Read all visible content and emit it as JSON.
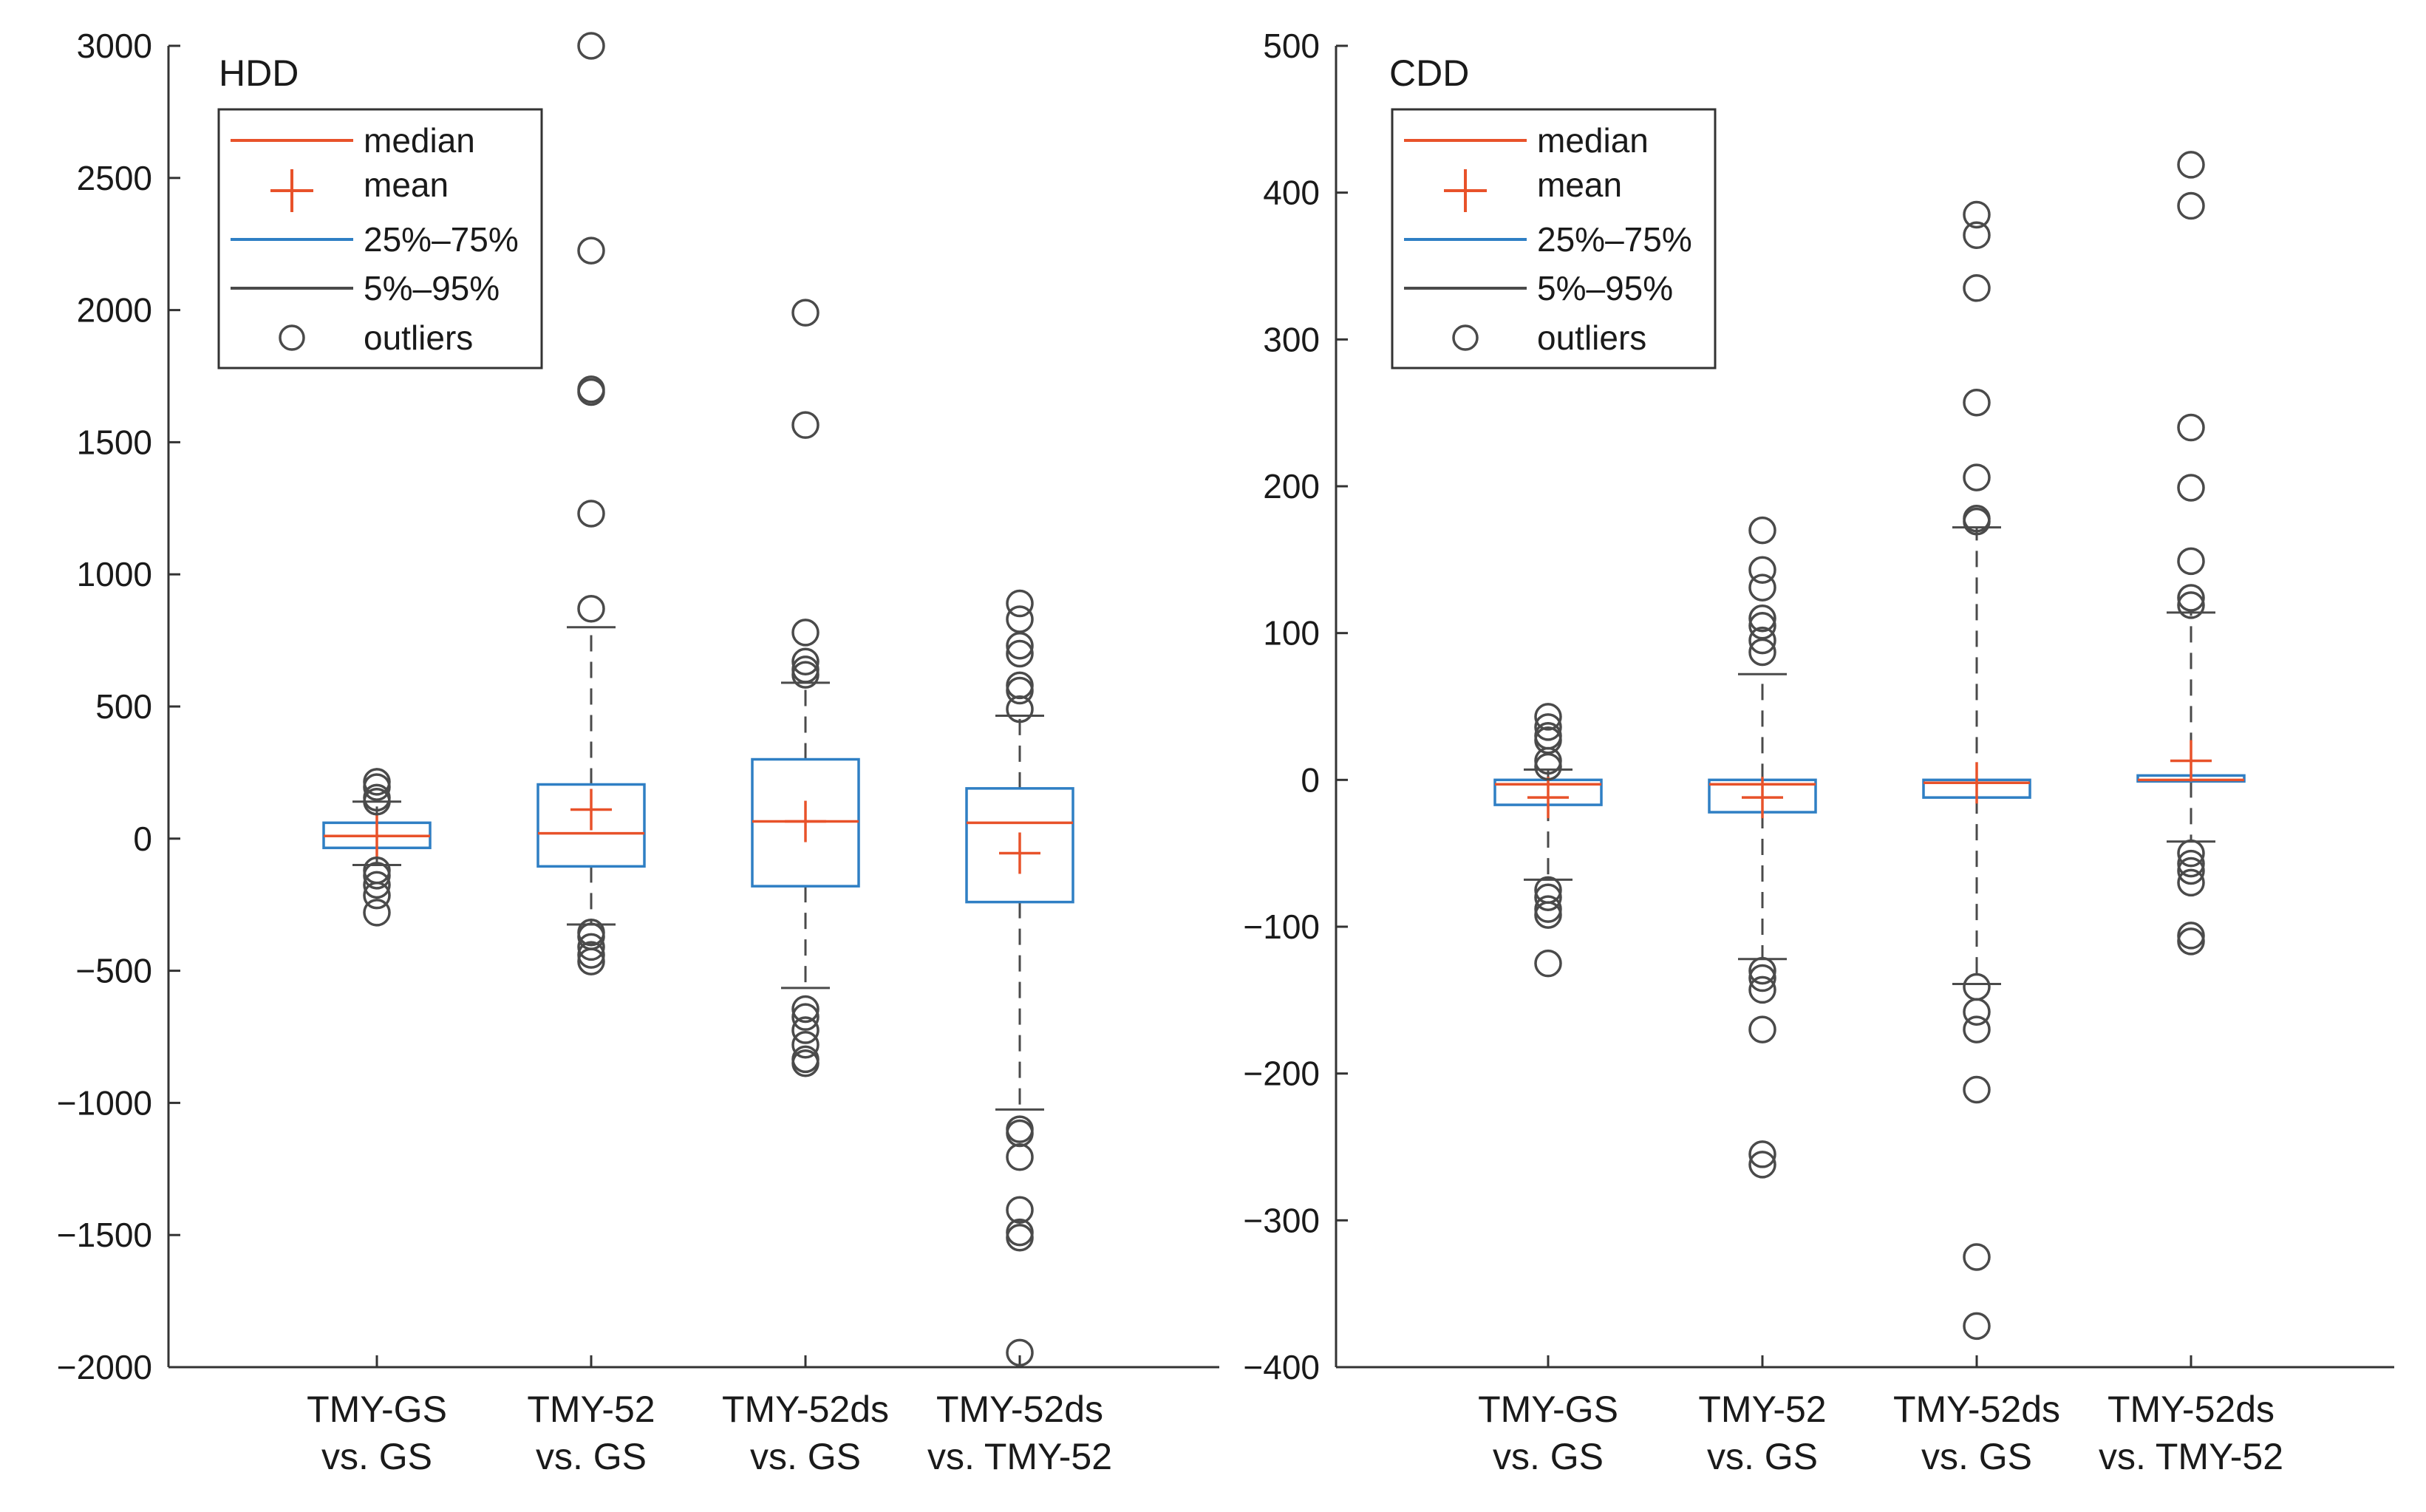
{
  "colors": {
    "median": "#e8522a",
    "mean": "#e8522a",
    "box": "#2f7fc4",
    "whisker": "#4a4a4a",
    "outlier": "#4a4a4a",
    "axis": "#333333"
  },
  "legend": {
    "median": "median",
    "mean": "mean",
    "box": "25%–75%",
    "whisker": "5%–95%",
    "outliers": "outliers"
  },
  "chart_data": [
    {
      "type": "box",
      "title": "HDD",
      "ylim": [
        -2000,
        3000
      ],
      "yticks": [
        3000,
        2500,
        2000,
        1500,
        1000,
        500,
        0,
        -500,
        -1000,
        -1500,
        -2000
      ],
      "ytick_labels": [
        "3000",
        "2500",
        "2000",
        "1500",
        "1000",
        "500",
        "0",
        "−500",
        "−1000",
        "−1500",
        "−2000"
      ],
      "legend_position": "top-left",
      "categories": [
        {
          "line1": "TMY-GS",
          "line2": "vs. GS"
        },
        {
          "line1": "TMY-52",
          "line2": "vs. GS"
        },
        {
          "line1": "TMY-52ds",
          "line2": "vs. GS"
        },
        {
          "line1": "TMY-52ds",
          "line2": "vs. TMY-52"
        }
      ],
      "boxes": [
        {
          "median": 10,
          "mean": 10,
          "q1": -35,
          "q3": 60,
          "p5": -100,
          "p95": 140,
          "outliers": [
            215,
            195,
            155,
            140,
            -120,
            -140,
            -175,
            -215,
            -280
          ]
        },
        {
          "median": 20,
          "mean": 110,
          "q1": -105,
          "q3": 205,
          "p5": -325,
          "p95": 800,
          "outliers": [
            3000,
            2225,
            1700,
            1690,
            1230,
            870,
            -355,
            -370,
            -410,
            -440,
            -465
          ]
        },
        {
          "median": 65,
          "mean": 65,
          "q1": -180,
          "q3": 300,
          "p5": -565,
          "p95": 590,
          "outliers": [
            1990,
            1565,
            780,
            670,
            640,
            620,
            -645,
            -675,
            -725,
            -780,
            -835,
            -850
          ]
        },
        {
          "median": 60,
          "mean": -55,
          "q1": -240,
          "q3": 190,
          "p5": -1025,
          "p95": 465,
          "outliers": [
            890,
            830,
            730,
            700,
            580,
            560,
            490,
            -1100,
            -1115,
            -1205,
            -1405,
            -1490,
            -1510,
            -1945
          ]
        }
      ]
    },
    {
      "type": "box",
      "title": "CDD",
      "ylim": [
        -400,
        500
      ],
      "yticks": [
        500,
        400,
        300,
        200,
        100,
        0,
        -100,
        -200,
        -300,
        -400
      ],
      "ytick_labels": [
        "500",
        "400",
        "300",
        "200",
        "100",
        "0",
        "−100",
        "−200",
        "−300",
        "−400"
      ],
      "legend_position": "top-left",
      "categories": [
        {
          "line1": "TMY-GS",
          "line2": "vs. GS"
        },
        {
          "line1": "TMY-52",
          "line2": "vs. GS"
        },
        {
          "line1": "TMY-52ds",
          "line2": "vs. GS"
        },
        {
          "line1": "TMY-52ds",
          "line2": "vs. TMY-52"
        }
      ],
      "boxes": [
        {
          "median": -3,
          "mean": -12,
          "q1": -17,
          "q3": 0,
          "p5": -68,
          "p95": 7,
          "outliers": [
            43,
            36,
            30,
            27,
            13,
            9,
            -75,
            -80,
            -88,
            -92,
            -125
          ]
        },
        {
          "median": -3,
          "mean": -12,
          "q1": -22,
          "q3": 0,
          "p5": -122,
          "p95": 72,
          "outliers": [
            170,
            143,
            131,
            110,
            105,
            95,
            87,
            -130,
            -135,
            -143,
            -170,
            -255,
            -262
          ]
        },
        {
          "median": -2,
          "mean": -2,
          "q1": -12,
          "q3": 0,
          "p5": -139,
          "p95": 172,
          "outliers": [
            385,
            371,
            335,
            257,
            206,
            178,
            176,
            -141,
            -158,
            -170,
            -211,
            -325,
            -372
          ]
        },
        {
          "median": 0,
          "mean": 13,
          "q1": -1,
          "q3": 3,
          "p5": -42,
          "p95": 114,
          "outliers": [
            419,
            391,
            240,
            199,
            149,
            124,
            119,
            -50,
            -57,
            -62,
            -70,
            -106,
            -110
          ]
        }
      ]
    }
  ]
}
